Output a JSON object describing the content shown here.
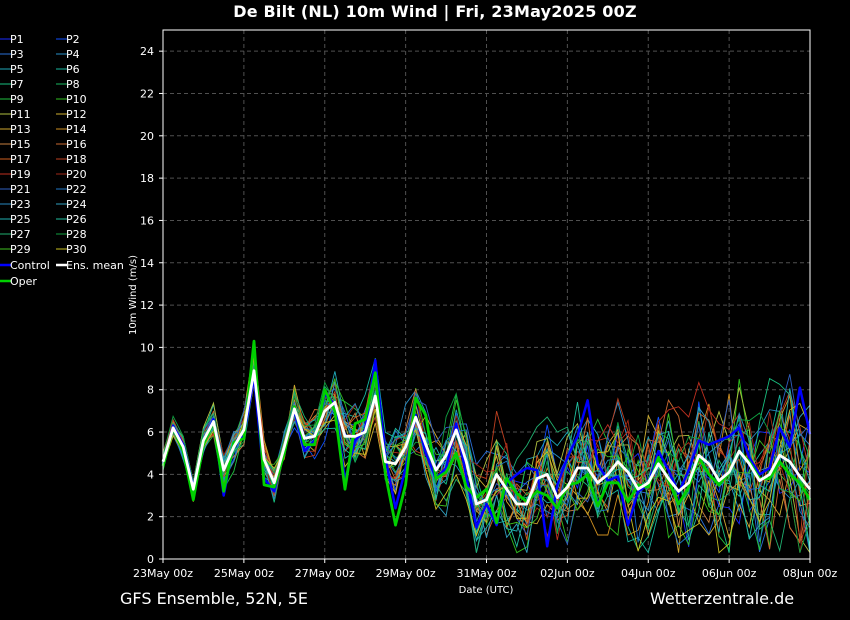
{
  "title": "De Bilt  (NL)  10m Wind | Fri, 23May2025 00Z",
  "footer": {
    "source": "GFS Ensemble, 52N, 5E",
    "site": "Wetterzentrale.de"
  },
  "chart_data": {
    "type": "line",
    "xlabel": "Date (UTC)",
    "ylabel": "10m Wind (m/s)",
    "ylim": [
      0,
      25
    ],
    "yticks": [
      0,
      2,
      4,
      6,
      8,
      10,
      12,
      14,
      16,
      18,
      20,
      22,
      24
    ],
    "x_start": "23May 00z",
    "x_end": "08Jun 00z",
    "x_step_hours": 6,
    "xticks": [
      "23May 00z",
      "25May 00z",
      "27May 00z",
      "29May 00z",
      "31May 00z",
      "02Jun 00z",
      "04Jun 00z",
      "06Jun 00z",
      "08Jun 00z"
    ],
    "grid": true,
    "legend_placement": "left-outside",
    "highlighted_series": [
      {
        "name": "Control",
        "color": "#0000ff",
        "values": [
          4.5,
          6.3,
          5.4,
          3.4,
          5.5,
          6.6,
          3.0,
          5.5,
          5.8,
          8.6,
          3.8,
          3.2,
          5.3,
          7.0,
          5.1,
          5.6,
          7.8,
          7.3,
          3.7,
          5.6,
          6.1,
          9.4,
          4.8,
          2.4,
          4.3,
          6.8,
          5.0,
          3.8,
          4.3,
          6.4,
          3.9,
          1.5,
          2.6,
          1.6,
          3.6,
          4.0,
          4.3,
          4.2,
          0.6,
          3.5,
          4.8,
          5.8,
          7.5,
          4.5,
          3.7,
          3.9,
          1.6,
          3.2,
          3.5,
          5.1,
          4.2,
          3.1,
          4.2,
          5.6,
          5.4,
          5.6,
          5.8,
          6.2,
          4.8,
          4.0,
          4.3,
          6.2,
          5.3,
          8.1,
          5.9
        ]
      },
      {
        "name": "Oper",
        "color": "#00d000",
        "values": [
          4.4,
          6.2,
          5.1,
          2.8,
          5.4,
          6.5,
          3.2,
          5.5,
          5.7,
          10.3,
          3.5,
          3.4,
          5.0,
          7.2,
          5.4,
          5.4,
          8.0,
          7.0,
          3.3,
          6.4,
          6.6,
          8.8,
          4.0,
          1.6,
          3.5,
          7.6,
          6.8,
          3.8,
          4.1,
          5.0,
          3.4,
          2.9,
          3.3,
          1.7,
          3.8,
          3.1,
          2.7,
          3.2,
          3.0,
          2.4,
          3.5,
          3.6,
          4.0,
          2.5,
          3.6,
          3.6,
          2.7,
          3.5,
          3.4,
          4.8,
          3.7,
          2.6,
          3.4,
          4.8,
          4.0,
          3.5,
          4.1,
          5.1,
          4.6,
          3.8,
          3.8,
          4.6,
          4.0,
          3.6,
          2.8
        ]
      },
      {
        "name": "Ens. mean",
        "color": "#ffffff",
        "values": [
          4.6,
          6.2,
          5.3,
          3.3,
          5.6,
          6.5,
          4.2,
          5.3,
          6.1,
          8.9,
          4.7,
          3.6,
          5.3,
          7.1,
          5.7,
          5.8,
          7.0,
          7.4,
          5.8,
          5.8,
          6.0,
          7.7,
          4.6,
          4.5,
          5.3,
          6.7,
          5.4,
          4.2,
          4.9,
          6.1,
          4.6,
          2.6,
          2.8,
          4.0,
          3.3,
          2.6,
          2.6,
          3.8,
          4.0,
          2.9,
          3.4,
          4.3,
          4.3,
          3.6,
          4.0,
          4.6,
          4.1,
          3.3,
          3.6,
          4.5,
          3.8,
          3.2,
          3.6,
          4.9,
          4.5,
          3.7,
          4.1,
          5.1,
          4.5,
          3.7,
          4.0,
          4.9,
          4.6,
          3.9,
          3.3
        ]
      }
    ],
    "members": [
      {
        "name": "P1",
        "color": "#1a2cff"
      },
      {
        "name": "P2",
        "color": "#1050ff"
      },
      {
        "name": "P3",
        "color": "#2a70d8"
      },
      {
        "name": "P4",
        "color": "#2890c8"
      },
      {
        "name": "P5",
        "color": "#20a8b8"
      },
      {
        "name": "P6",
        "color": "#18b8a0"
      },
      {
        "name": "P7",
        "color": "#18c080"
      },
      {
        "name": "P8",
        "color": "#18b860"
      },
      {
        "name": "P9",
        "color": "#20c040"
      },
      {
        "name": "P10",
        "color": "#30c020"
      },
      {
        "name": "P11",
        "color": "#b0c040"
      },
      {
        "name": "P12",
        "color": "#d0b030"
      },
      {
        "name": "P13",
        "color": "#d0a830"
      },
      {
        "name": "P14",
        "color": "#d09020"
      },
      {
        "name": "P15",
        "color": "#c88040"
      },
      {
        "name": "P16",
        "color": "#c86830"
      },
      {
        "name": "P17",
        "color": "#d06020"
      },
      {
        "name": "P18",
        "color": "#c04020"
      },
      {
        "name": "P19",
        "color": "#c03020"
      },
      {
        "name": "P20",
        "color": "#a02818"
      },
      {
        "name": "P21",
        "color": "#3060c0"
      },
      {
        "name": "P22",
        "color": "#2078c8"
      },
      {
        "name": "P23",
        "color": "#2888c0"
      },
      {
        "name": "P24",
        "color": "#30a0c0"
      },
      {
        "name": "P25",
        "color": "#20b0b0"
      },
      {
        "name": "P26",
        "color": "#20c0a0"
      },
      {
        "name": "P27",
        "color": "#20b070"
      },
      {
        "name": "P28",
        "color": "#10a040"
      },
      {
        "name": "P29",
        "color": "#40c020"
      },
      {
        "name": "P30",
        "color": "#c8c020"
      }
    ],
    "legend_extra": [
      {
        "name": "Control",
        "color": "#0000ff"
      },
      {
        "name": "Ens. mean",
        "color": "#ffffff"
      },
      {
        "name": "Oper",
        "color": "#00d000"
      }
    ]
  }
}
